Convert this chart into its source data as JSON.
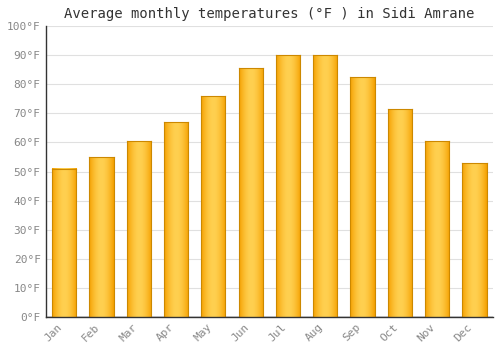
{
  "title": "Average monthly temperatures (°F ) in Sidi Amrane",
  "months": [
    "Jan",
    "Feb",
    "Mar",
    "Apr",
    "May",
    "Jun",
    "Jul",
    "Aug",
    "Sep",
    "Oct",
    "Nov",
    "Dec"
  ],
  "values": [
    51,
    55,
    60.5,
    67,
    76,
    85.5,
    90,
    90,
    82.5,
    71.5,
    60.5,
    53
  ],
  "bar_color_center": "#FFD050",
  "bar_color_edge": "#F5A000",
  "bar_border_color": "#CC8800",
  "background_color": "#FFFFFF",
  "grid_color": "#e0e0e0",
  "ylim": [
    0,
    100
  ],
  "yticks": [
    0,
    10,
    20,
    30,
    40,
    50,
    60,
    70,
    80,
    90,
    100
  ],
  "ytick_labels": [
    "0°F",
    "10°F",
    "20°F",
    "30°F",
    "40°F",
    "50°F",
    "60°F",
    "70°F",
    "80°F",
    "90°F",
    "100°F"
  ],
  "title_fontsize": 10,
  "tick_fontsize": 8,
  "bar_width": 0.65,
  "figsize": [
    5.0,
    3.5
  ],
  "dpi": 100
}
